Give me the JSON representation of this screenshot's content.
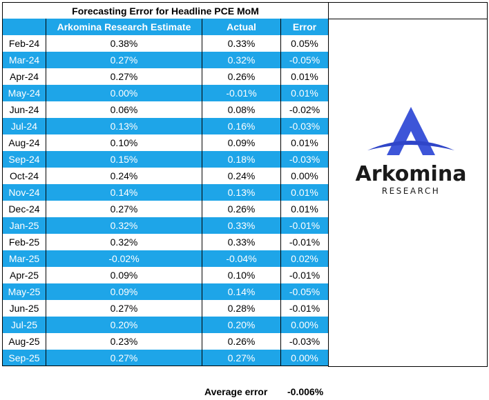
{
  "table": {
    "title": "Forecasting Error for Headline PCE MoM",
    "header": [
      "",
      "Arkomina Research Estimate",
      "Actual",
      "Error"
    ],
    "rows": [
      [
        "Feb-24",
        "0.38%",
        "0.33%",
        "0.05%"
      ],
      [
        "Mar-24",
        "0.27%",
        "0.32%",
        "-0.05%"
      ],
      [
        "Apr-24",
        "0.27%",
        "0.26%",
        "0.01%"
      ],
      [
        "May-24",
        "0.00%",
        "-0.01%",
        "0.01%"
      ],
      [
        "Jun-24",
        "0.06%",
        "0.08%",
        "-0.02%"
      ],
      [
        "Jul-24",
        "0.13%",
        "0.16%",
        "-0.03%"
      ],
      [
        "Aug-24",
        "0.10%",
        "0.09%",
        "0.01%"
      ],
      [
        "Sep-24",
        "0.15%",
        "0.18%",
        "-0.03%"
      ],
      [
        "Oct-24",
        "0.24%",
        "0.24%",
        "0.00%"
      ],
      [
        "Nov-24",
        "0.14%",
        "0.13%",
        "0.01%"
      ],
      [
        "Dec-24",
        "0.27%",
        "0.26%",
        "0.01%"
      ],
      [
        "Jan-25",
        "0.32%",
        "0.33%",
        "-0.01%"
      ],
      [
        "Feb-25",
        "0.32%",
        "0.33%",
        "-0.01%"
      ],
      [
        "Mar-25",
        "-0.02%",
        "-0.04%",
        "0.02%"
      ],
      [
        "Apr-25",
        "0.09%",
        "0.10%",
        "-0.01%"
      ],
      [
        "May-25",
        "0.09%",
        "0.14%",
        "-0.05%"
      ],
      [
        "Jun-25",
        "0.27%",
        "0.28%",
        "-0.01%"
      ],
      [
        "Jul-25",
        "0.20%",
        "0.20%",
        "0.00%"
      ],
      [
        "Aug-25",
        "0.23%",
        "0.26%",
        "-0.03%"
      ],
      [
        "Sep-25",
        "0.27%",
        "0.27%",
        "0.00%"
      ]
    ]
  },
  "logo": {
    "name": "Arkomina",
    "tagline": "RESEARCH"
  },
  "footer": {
    "label": "Average error",
    "value": "-0.006%"
  }
}
